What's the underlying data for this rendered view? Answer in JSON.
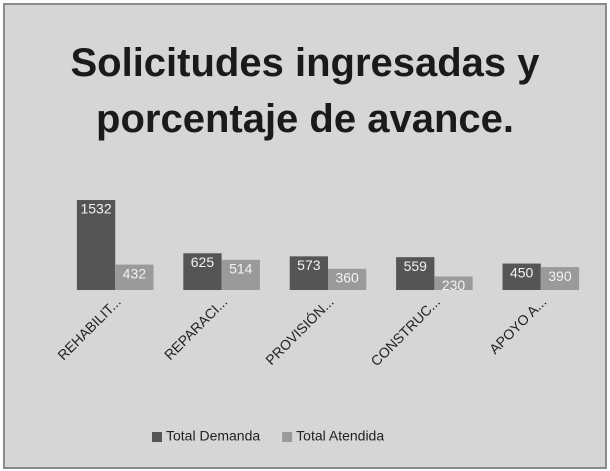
{
  "chart_data": {
    "type": "bar",
    "title": "Solicitudes ingresadas y porcentaje de avance.",
    "categories": [
      "REHABILIT...",
      "REPARACI...",
      "PROVISIÓN...",
      "CONSTRUC...",
      "APOYO A..."
    ],
    "series": [
      {
        "name": "Total Demanda",
        "color": "#555555",
        "values": [
          1532,
          625,
          573,
          559,
          450
        ]
      },
      {
        "name": "Total Atendida",
        "color": "#9a9a9a",
        "values": [
          432,
          514,
          360,
          230,
          390
        ]
      }
    ],
    "ylim": [
      0,
      1600
    ],
    "legend": "bottom"
  }
}
